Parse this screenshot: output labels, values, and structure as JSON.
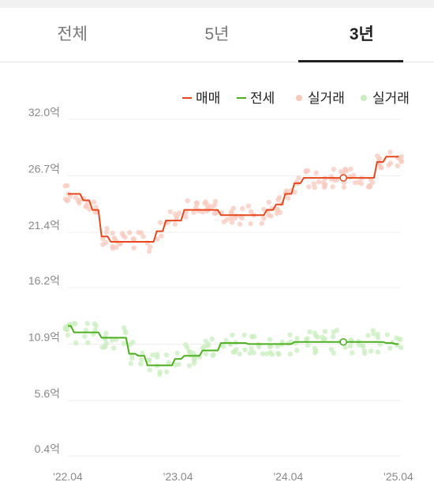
{
  "tabs": [
    {
      "label": "전체",
      "active": false
    },
    {
      "label": "5년",
      "active": false
    },
    {
      "label": "3년",
      "active": true
    }
  ],
  "chart_data": {
    "type": "line",
    "legend": [
      {
        "label": "매매",
        "kind": "line",
        "color": "#e8471c"
      },
      {
        "label": "전세",
        "kind": "line",
        "color": "#4caf1e"
      },
      {
        "label": "실거래",
        "kind": "dot",
        "color": "#f7c9bd"
      },
      {
        "label": "실거래",
        "kind": "dot",
        "color": "#c9edbd"
      }
    ],
    "y_ticks": [
      "32.0억",
      "26.7억",
      "21.4억",
      "16.2억",
      "10.9억",
      "5.6억",
      "0.4억"
    ],
    "y_tick_values": [
      32.0,
      26.7,
      21.4,
      16.2,
      10.9,
      5.6,
      0.4
    ],
    "ylim": [
      0.4,
      32.0
    ],
    "x_ticks": [
      "'22.04",
      "'23.04",
      "'24.04",
      "'25.04"
    ],
    "xlim": [
      "2022-04",
      "2025-04"
    ],
    "grid": "horizontal",
    "legend_position": "top-right",
    "series": [
      {
        "name": "매매",
        "color": "#e8471c",
        "x": [
          "2022-04",
          "2022-05",
          "2022-06",
          "2022-07",
          "2022-08",
          "2022-09",
          "2022-10",
          "2022-11",
          "2022-12",
          "2023-01",
          "2023-02",
          "2023-03",
          "2023-04",
          "2023-05",
          "2023-06",
          "2023-07",
          "2023-08",
          "2023-09",
          "2023-10",
          "2023-11",
          "2023-12",
          "2024-01",
          "2024-02",
          "2024-03",
          "2024-04",
          "2024-05",
          "2024-06",
          "2024-07",
          "2024-08",
          "2024-09",
          "2024-10",
          "2024-11",
          "2024-12",
          "2025-01",
          "2025-02",
          "2025-03",
          "2025-04"
        ],
        "values": [
          25.0,
          25.0,
          24.4,
          23.5,
          21.0,
          20.5,
          20.5,
          20.5,
          20.5,
          20.5,
          21.5,
          22.5,
          22.5,
          23.5,
          23.5,
          23.5,
          23.5,
          23.0,
          23.0,
          23.0,
          23.0,
          23.0,
          23.5,
          24.0,
          25.0,
          26.0,
          26.5,
          26.5,
          26.5,
          26.5,
          26.5,
          26.5,
          26.5,
          26.5,
          28.0,
          28.5,
          28.5
        ]
      },
      {
        "name": "전세",
        "color": "#4caf1e",
        "x": [
          "2022-04",
          "2022-05",
          "2022-06",
          "2022-07",
          "2022-08",
          "2022-09",
          "2022-10",
          "2022-11",
          "2022-12",
          "2023-01",
          "2023-02",
          "2023-03",
          "2023-04",
          "2023-05",
          "2023-06",
          "2023-07",
          "2023-08",
          "2023-09",
          "2023-10",
          "2023-11",
          "2023-12",
          "2024-01",
          "2024-02",
          "2024-03",
          "2024-04",
          "2024-05",
          "2024-06",
          "2024-07",
          "2024-08",
          "2024-09",
          "2024-10",
          "2024-11",
          "2024-12",
          "2025-01",
          "2025-02",
          "2025-03",
          "2025-04"
        ],
        "values": [
          12.6,
          12.0,
          12.0,
          12.0,
          11.5,
          11.5,
          11.5,
          10.0,
          9.8,
          8.9,
          8.9,
          8.9,
          9.5,
          9.8,
          9.8,
          10.3,
          10.3,
          11.0,
          11.0,
          11.0,
          10.9,
          10.9,
          10.9,
          10.9,
          10.9,
          11.1,
          11.1,
          11.1,
          11.1,
          11.1,
          11.1,
          11.1,
          11.1,
          11.1,
          11.1,
          11.0,
          10.9
        ]
      }
    ],
    "markers": [
      {
        "series": "매매",
        "x": "2024-10",
        "value": 26.5
      },
      {
        "series": "전세",
        "x": "2024-10",
        "value": 11.1
      }
    ]
  }
}
